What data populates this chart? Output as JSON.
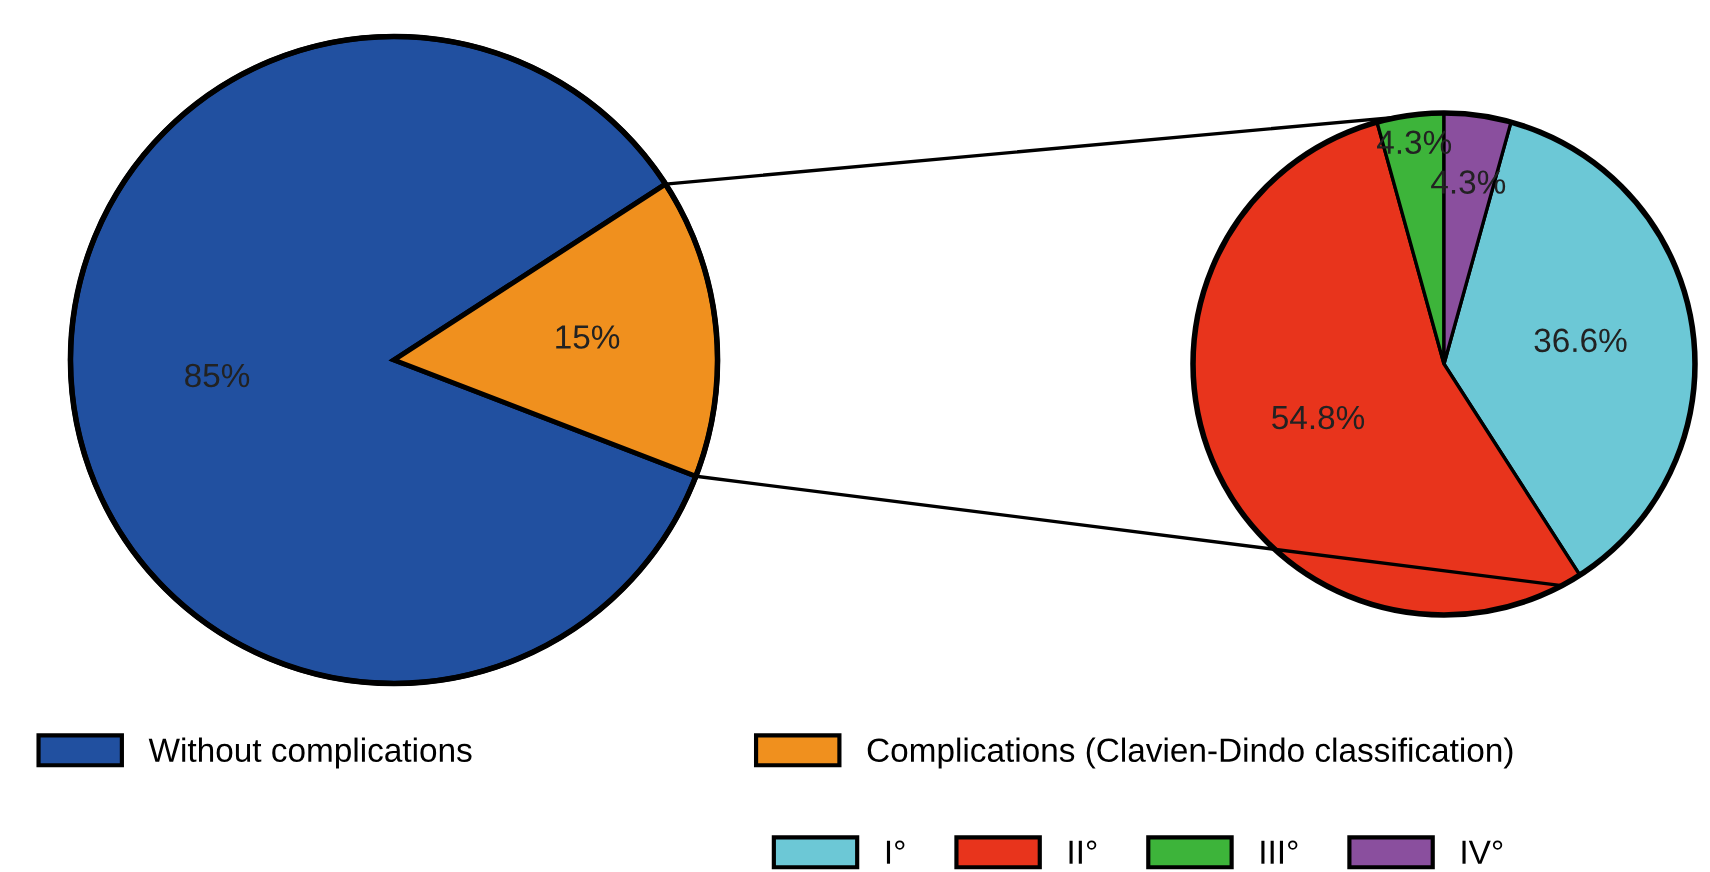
{
  "chart_data": [
    {
      "type": "pie",
      "categories": [
        "Without complications",
        "Complications (Clavien-Dindo classification)"
      ],
      "values": [
        85,
        15
      ],
      "colors": [
        "#2150a0",
        "#f0901e"
      ],
      "value_labels": [
        "85%",
        "15%"
      ],
      "legend": "bottom"
    },
    {
      "type": "pie",
      "categories": [
        "I°",
        "II°",
        "III°",
        "IV°"
      ],
      "values": [
        36.6,
        54.8,
        4.3,
        4.3
      ],
      "colors": [
        "#6cc8d6",
        "#e8341c",
        "#3db43a",
        "#8a4f9e"
      ],
      "value_labels": [
        "36.6%",
        "54.8%",
        "4.3%",
        "4.3%"
      ],
      "legend": "bottom"
    }
  ]
}
